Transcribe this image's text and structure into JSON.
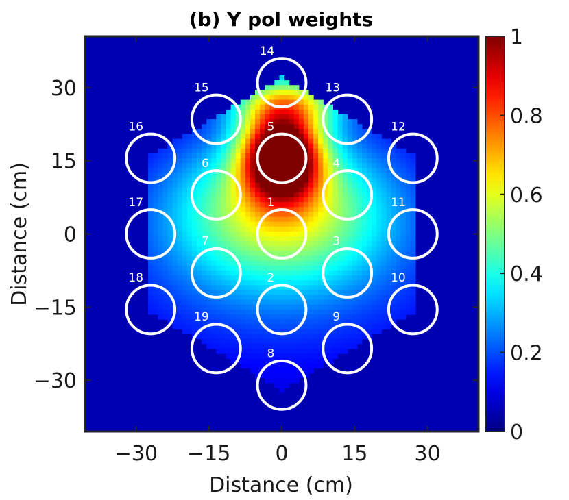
{
  "chart_data": {
    "type": "heatmap",
    "title": "(b) Y pol weights",
    "xlabel": "Distance (cm)",
    "ylabel": "Distance (cm)",
    "xlim": [
      -40.5,
      40.5
    ],
    "ylim": [
      -40.5,
      40.5
    ],
    "xticks": [
      -30,
      -15,
      0,
      15,
      30
    ],
    "yticks": [
      30,
      15,
      0,
      -15,
      -30
    ],
    "xtick_labels": [
      "−30",
      "−15",
      "0",
      "15",
      "30"
    ],
    "ytick_labels": [
      "30",
      "15",
      "0",
      "−15",
      "−30"
    ],
    "colorbar": {
      "range": [
        0,
        1
      ],
      "ticks": [
        0,
        0.2,
        0.4,
        0.6,
        0.8,
        1
      ],
      "labels": [
        "0",
        "0.2",
        "0.4",
        "0.6",
        "0.8",
        "1"
      ],
      "colormap": "jet"
    },
    "background_value": 0.05,
    "support": "hexagon, corners at (0, ±32) and (±27.5, ±15.8)",
    "peak": {
      "x": 0,
      "y": 16,
      "value": 1.0
    },
    "horns": [
      {
        "label": "1",
        "x": 0,
        "y": 0
      },
      {
        "label": "2",
        "x": 0,
        "y": -15.5
      },
      {
        "label": "3",
        "x": 13.5,
        "y": -8
      },
      {
        "label": "4",
        "x": 13.5,
        "y": 8
      },
      {
        "label": "5",
        "x": 0,
        "y": 15.5
      },
      {
        "label": "6",
        "x": -13.5,
        "y": 8
      },
      {
        "label": "7",
        "x": -13.5,
        "y": -8
      },
      {
        "label": "8",
        "x": 0,
        "y": -31
      },
      {
        "label": "9",
        "x": 13.5,
        "y": -23.5
      },
      {
        "label": "10",
        "x": 27,
        "y": -15.5
      },
      {
        "label": "11",
        "x": 27,
        "y": 0
      },
      {
        "label": "12",
        "x": 27,
        "y": 15.5
      },
      {
        "label": "13",
        "x": 13.5,
        "y": 23.5
      },
      {
        "label": "14",
        "x": 0,
        "y": 31
      },
      {
        "label": "15",
        "x": -13.5,
        "y": 23.5
      },
      {
        "label": "16",
        "x": -27,
        "y": 15.5
      },
      {
        "label": "17",
        "x": -27,
        "y": 0
      },
      {
        "label": "18",
        "x": -27,
        "y": -15.5
      },
      {
        "label": "19",
        "x": -13.5,
        "y": -23.5
      }
    ],
    "horn_radius": 5
  }
}
